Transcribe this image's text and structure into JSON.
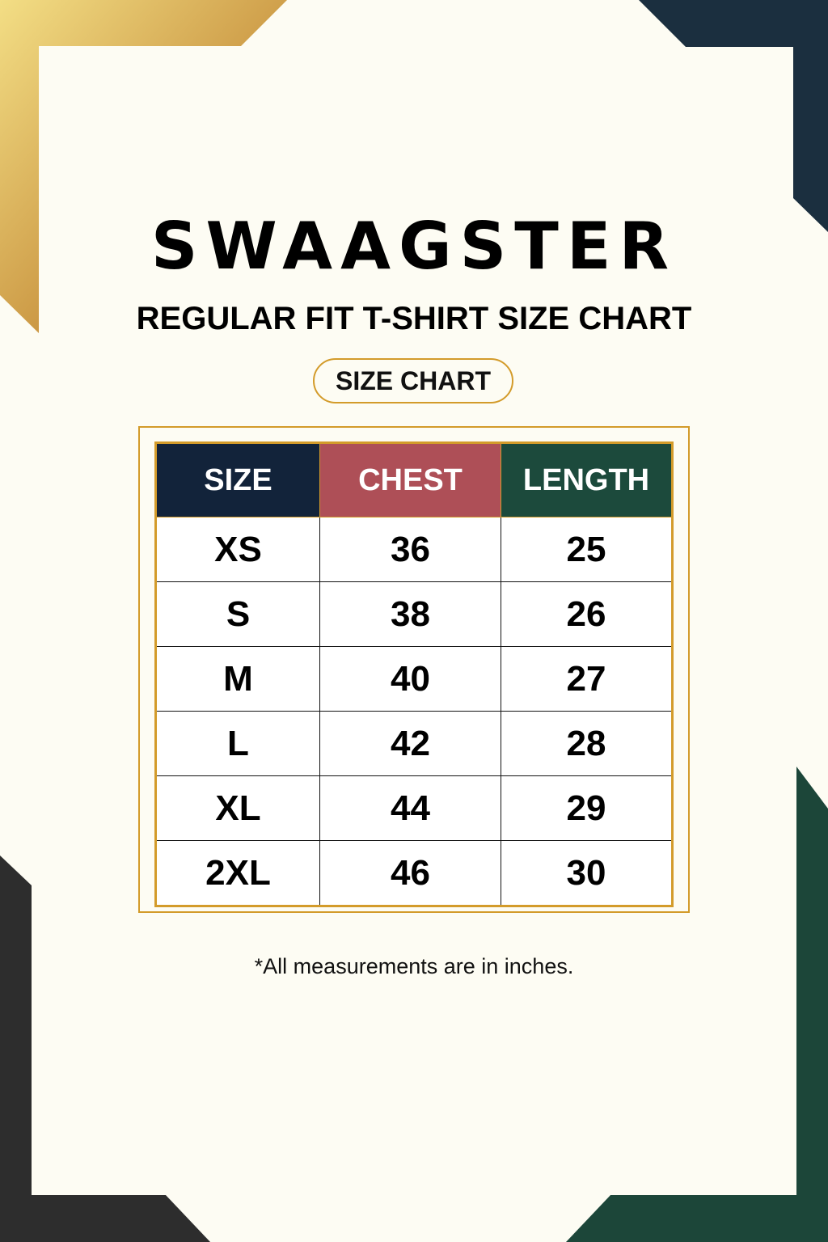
{
  "brand": "SWAAGSTER",
  "subtitle": "REGULAR FIT T-SHIRT SIZE CHART",
  "badge": "SIZE CHART",
  "colors": {
    "gold": "#d39b2a",
    "navy": "#12233a",
    "red": "#ae4f57",
    "green": "#1c4a3c",
    "charcoal": "#2d2d2d",
    "background": "#fdfcf3"
  },
  "table": {
    "headers": [
      "SIZE",
      "CHEST",
      "LENGTH"
    ],
    "rows": [
      [
        "XS",
        "36",
        "25"
      ],
      [
        "S",
        "38",
        "26"
      ],
      [
        "M",
        "40",
        "27"
      ],
      [
        "L",
        "42",
        "28"
      ],
      [
        "XL",
        "44",
        "29"
      ],
      [
        "2XL",
        "46",
        "30"
      ]
    ]
  },
  "note": "*All measurements are in inches."
}
